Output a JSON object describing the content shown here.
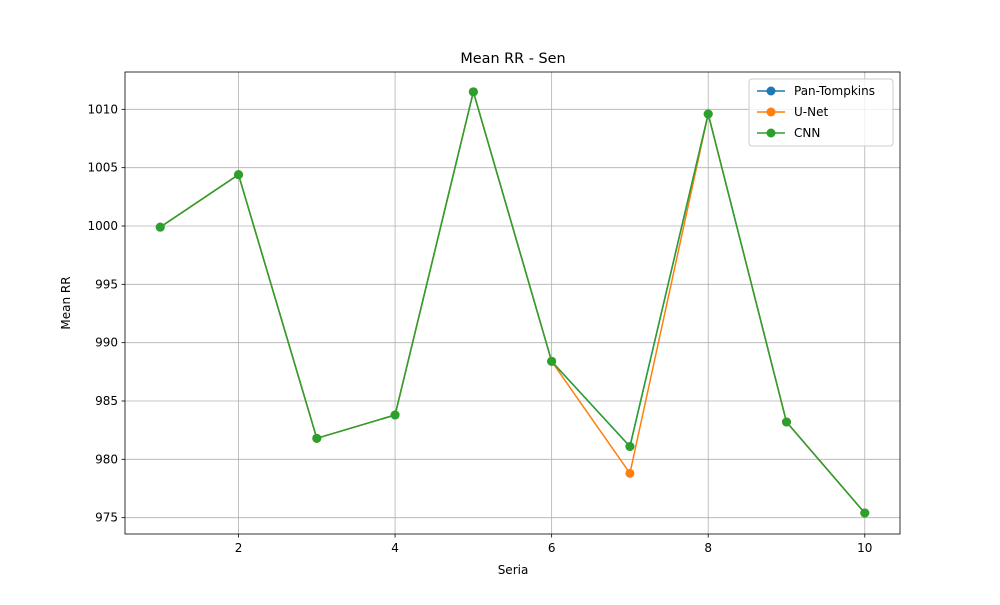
{
  "chart_data": {
    "type": "line",
    "title": "Mean RR - Sen",
    "xlabel": "Seria",
    "ylabel": "Mean RR",
    "x": [
      1,
      2,
      3,
      4,
      5,
      6,
      7,
      8,
      9,
      10
    ],
    "xlim": [
      0.55,
      10.45
    ],
    "ylim": [
      973.6,
      1013.2
    ],
    "xticks": [
      2,
      4,
      6,
      8,
      10
    ],
    "yticks": [
      975,
      980,
      985,
      990,
      995,
      1000,
      1005,
      1010
    ],
    "grid": true,
    "legend_position": "top-right",
    "series": [
      {
        "name": "Pan-Tompkins",
        "color": "#1f77b4",
        "marker": "circle",
        "values": [
          999.9,
          1004.4,
          981.8,
          983.8,
          1011.5,
          988.4,
          981.1,
          1009.6,
          983.2,
          975.4
        ]
      },
      {
        "name": "U-Net",
        "color": "#ff7f0e",
        "marker": "circle",
        "values": [
          999.9,
          1004.4,
          981.8,
          983.8,
          1011.5,
          988.4,
          978.8,
          1009.6,
          983.2,
          975.4
        ]
      },
      {
        "name": "CNN",
        "color": "#2ca02c",
        "marker": "circle",
        "values": [
          999.9,
          1004.4,
          981.8,
          983.8,
          1011.5,
          988.4,
          981.1,
          1009.6,
          983.2,
          975.4
        ]
      }
    ]
  }
}
